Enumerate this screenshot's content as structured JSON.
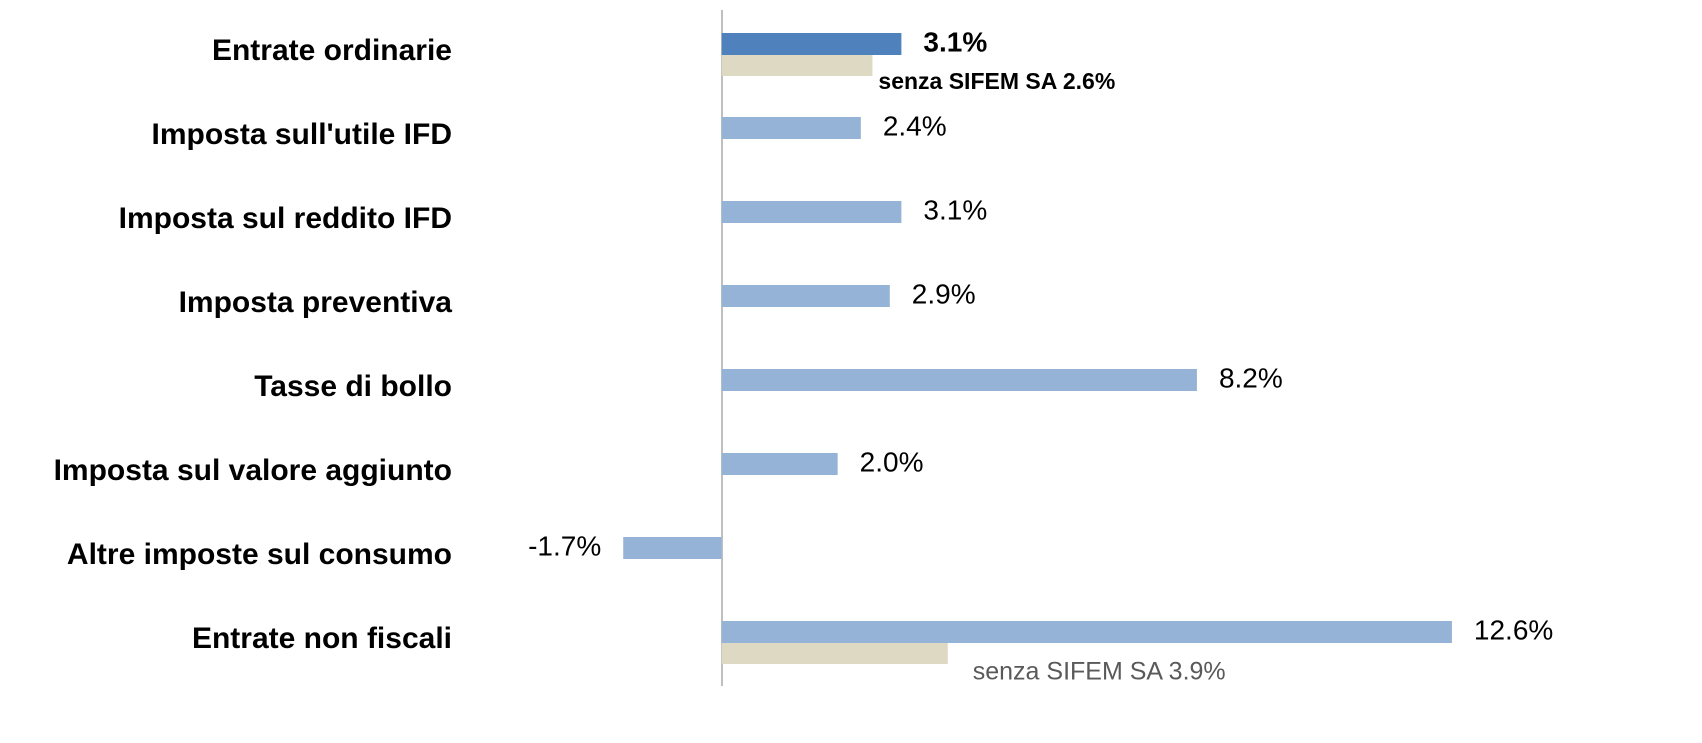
{
  "chart_data": {
    "type": "hbar",
    "categories": [
      "Entrate ordinarie",
      "Imposta sull'utile IFD",
      "Imposta sul reddito IFD",
      "Imposta preventiva",
      "Tasse di bollo",
      "Imposta sul valore aggiunto",
      "Altre imposte sul consumo",
      "Entrate non fiscali"
    ],
    "xlim": [
      -5,
      15
    ],
    "series": [
      {
        "colors": [
          "#4f81bd",
          "#95b3d7",
          "#95b3d7",
          "#95b3d7",
          "#95b3d7",
          "#95b3d7",
          "#95b3d7",
          "#95b3d7"
        ],
        "values": [
          3.1,
          2.4,
          3.1,
          2.9,
          8.2,
          2.0,
          -1.7,
          12.6
        ],
        "value_labels": [
          "3.1%",
          "2.4%",
          "3.1%",
          "2.9%",
          "8.2%",
          "2.0%",
          "-1.7%",
          "12.6%"
        ]
      },
      {
        "color": "#ddd9c3",
        "values": [
          2.6,
          null,
          null,
          null,
          null,
          null,
          null,
          3.9
        ],
        "value_labels": [
          "senza SIFEM SA 2.6%",
          null,
          null,
          null,
          null,
          null,
          null,
          "senza SIFEM SA 3.9%"
        ]
      }
    ]
  }
}
